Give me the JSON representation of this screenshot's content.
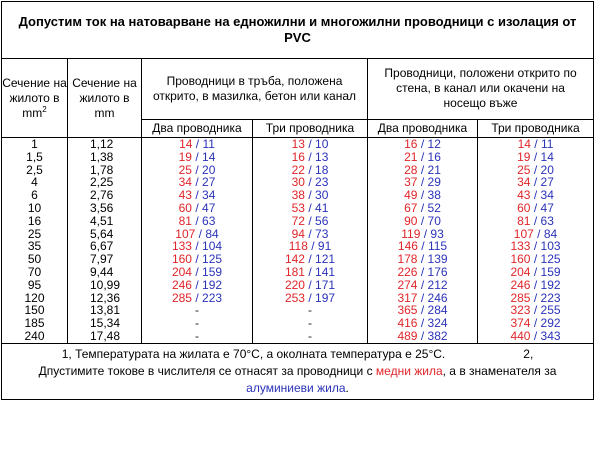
{
  "title": "Допустим ток на натоварване на едножилни и многожилни проводници с изолация от PVC",
  "headers": {
    "col1": "Сечение на жилото в mm",
    "col1_sup": "2",
    "col2": "Сечение на жилото в mm",
    "group1": "Проводници в тръба, положена открито, в мазилка, бетон или канал",
    "group2": "Проводници, положени открито по стена, в канал или окачени на носещо въже",
    "two": "Два проводника",
    "three": "Три проводника"
  },
  "separator": "/",
  "rows": [
    {
      "sec": "1",
      "dia": "1,12",
      "g1_2": [
        "14",
        "11"
      ],
      "g1_3": [
        "13",
        "10"
      ],
      "g2_2": [
        "16",
        "12"
      ],
      "g2_3": [
        "14",
        "11"
      ]
    },
    {
      "sec": "1,5",
      "dia": "1,38",
      "g1_2": [
        "19",
        "14"
      ],
      "g1_3": [
        "16",
        "13"
      ],
      "g2_2": [
        "21",
        "16"
      ],
      "g2_3": [
        "19",
        "14"
      ]
    },
    {
      "sec": "2,5",
      "dia": "1,78",
      "g1_2": [
        "25",
        "20"
      ],
      "g1_3": [
        "22",
        "18"
      ],
      "g2_2": [
        "28",
        "21"
      ],
      "g2_3": [
        "25",
        "20"
      ]
    },
    {
      "sec": "4",
      "dia": "2,25",
      "g1_2": [
        "34",
        "27"
      ],
      "g1_3": [
        "30",
        "23"
      ],
      "g2_2": [
        "37",
        "29"
      ],
      "g2_3": [
        "34",
        "27"
      ]
    },
    {
      "sec": "6",
      "dia": "2,76",
      "g1_2": [
        "43",
        "34"
      ],
      "g1_3": [
        "38",
        "30"
      ],
      "g2_2": [
        "49",
        "38"
      ],
      "g2_3": [
        "43",
        "34"
      ]
    },
    {
      "sec": "10",
      "dia": "3,56",
      "g1_2": [
        "60",
        "47"
      ],
      "g1_3": [
        "53",
        "41"
      ],
      "g2_2": [
        "67",
        "52"
      ],
      "g2_3": [
        "60",
        "47"
      ]
    },
    {
      "sec": "16",
      "dia": "4,51",
      "g1_2": [
        "81",
        "63"
      ],
      "g1_3": [
        "72",
        "56"
      ],
      "g2_2": [
        "90",
        "70"
      ],
      "g2_3": [
        "81",
        "63"
      ]
    },
    {
      "sec": "25",
      "dia": "5,64",
      "g1_2": [
        "107",
        "84"
      ],
      "g1_3": [
        "94",
        "73"
      ],
      "g2_2": [
        "119",
        "93"
      ],
      "g2_3": [
        "107",
        "84"
      ]
    },
    {
      "sec": "35",
      "dia": "6,67",
      "g1_2": [
        "133",
        "104"
      ],
      "g1_3": [
        "118",
        "91"
      ],
      "g2_2": [
        "146",
        "115"
      ],
      "g2_3": [
        "133",
        "103"
      ]
    },
    {
      "sec": "50",
      "dia": "7,97",
      "g1_2": [
        "160",
        "125"
      ],
      "g1_3": [
        "142",
        "121"
      ],
      "g2_2": [
        "178",
        "139"
      ],
      "g2_3": [
        "160",
        "125"
      ]
    },
    {
      "sec": "70",
      "dia": "9,44",
      "g1_2": [
        "204",
        "159"
      ],
      "g1_3": [
        "181",
        "141"
      ],
      "g2_2": [
        "226",
        "176"
      ],
      "g2_3": [
        "204",
        "159"
      ]
    },
    {
      "sec": "95",
      "dia": "10,99",
      "g1_2": [
        "246",
        "192"
      ],
      "g1_3": [
        "220",
        "171"
      ],
      "g2_2": [
        "274",
        "212"
      ],
      "g2_3": [
        "246",
        "192"
      ]
    },
    {
      "sec": "120",
      "dia": "12,36",
      "g1_2": [
        "285",
        "223"
      ],
      "g1_3": [
        "253",
        "197"
      ],
      "g2_2": [
        "317",
        "246"
      ],
      "g2_3": [
        "285",
        "223"
      ]
    },
    {
      "sec": "150",
      "dia": "13,81",
      "g1_2": null,
      "g1_3": null,
      "g2_2": [
        "365",
        "284"
      ],
      "g2_3": [
        "323",
        "255"
      ]
    },
    {
      "sec": "185",
      "dia": "15,34",
      "g1_2": null,
      "g1_3": null,
      "g2_2": [
        "416",
        "324"
      ],
      "g2_3": [
        "374",
        "292"
      ]
    },
    {
      "sec": "240",
      "dia": "17,48",
      "g1_2": null,
      "g1_3": null,
      "g2_2": [
        "489",
        "382"
      ],
      "g2_3": [
        "440",
        "343"
      ]
    }
  ],
  "dash": "-",
  "footer": {
    "line1": "1, Температурата на жилата е 70°C, а околната температура е 25°C.",
    "line1_num2": "2,",
    "line2_a": "Дпустимите токове в числителя се отнасят за проводници с ",
    "line2_cu": "медни жила",
    "line2_b": ", а в знаменателя за",
    "line3_al": "алуминиеви жила",
    "line3_end": "."
  },
  "colors": {
    "copper": "#e0252a",
    "aluminium": "#2b33b8"
  }
}
